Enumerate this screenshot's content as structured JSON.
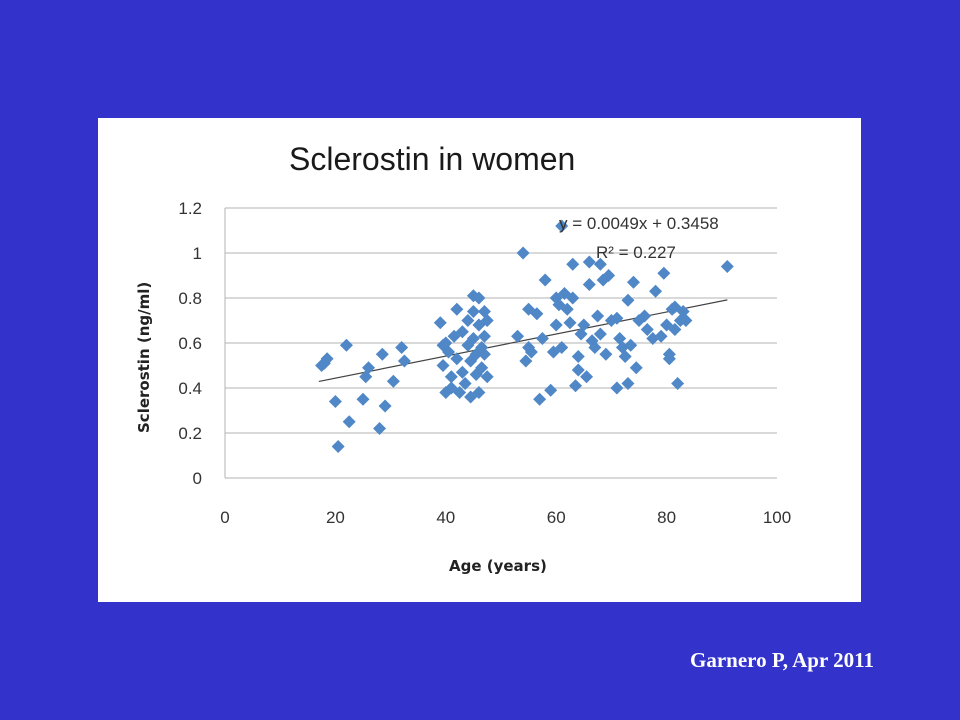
{
  "slide": {
    "citation": "Garnero P, Apr 2011",
    "background_color": "#3333cc"
  },
  "chart_data": {
    "type": "scatter",
    "title": "Sclerostin in women",
    "xlabel": "Age (years)",
    "ylabel": "Sclerostin (ng/ml)",
    "xlim": [
      0,
      100
    ],
    "ylim": [
      0,
      1.2
    ],
    "x_ticks": [
      "0",
      "20",
      "40",
      "60",
      "80",
      "100"
    ],
    "y_ticks": [
      "0",
      "0.2",
      "0.4",
      "0.6",
      "0.8",
      "1",
      "1.2"
    ],
    "grid": "horizontal",
    "marker": "diamond",
    "marker_color": "#4f87c7",
    "trendline": {
      "type": "linear",
      "slope": 0.0049,
      "intercept": 0.3458,
      "x_range": [
        17,
        91
      ],
      "equation_label": "y = 0.0049x + 0.3458",
      "r2_label": "R² = 0.227"
    },
    "points": [
      [
        17.5,
        0.5
      ],
      [
        18.5,
        0.53
      ],
      [
        18,
        0.51
      ],
      [
        20,
        0.34
      ],
      [
        20.5,
        0.14
      ],
      [
        22,
        0.59
      ],
      [
        22.5,
        0.25
      ],
      [
        25,
        0.35
      ],
      [
        25.5,
        0.45
      ],
      [
        26,
        0.49
      ],
      [
        28,
        0.22
      ],
      [
        28.5,
        0.55
      ],
      [
        29,
        0.32
      ],
      [
        30.5,
        0.43
      ],
      [
        32,
        0.58
      ],
      [
        32.5,
        0.52
      ],
      [
        39,
        0.69
      ],
      [
        39.5,
        0.59
      ],
      [
        39.5,
        0.5
      ],
      [
        40,
        0.38
      ],
      [
        40,
        0.6
      ],
      [
        40.5,
        0.56
      ],
      [
        41,
        0.45
      ],
      [
        41,
        0.4
      ],
      [
        41.5,
        0.63
      ],
      [
        42,
        0.75
      ],
      [
        42,
        0.53
      ],
      [
        42.5,
        0.38
      ],
      [
        43,
        0.65
      ],
      [
        43,
        0.47
      ],
      [
        43.5,
        0.42
      ],
      [
        44,
        0.7
      ],
      [
        44,
        0.59
      ],
      [
        44.5,
        0.52
      ],
      [
        44.5,
        0.36
      ],
      [
        45,
        0.81
      ],
      [
        45,
        0.74
      ],
      [
        45,
        0.62
      ],
      [
        45.5,
        0.55
      ],
      [
        45.5,
        0.46
      ],
      [
        46,
        0.8
      ],
      [
        46,
        0.68
      ],
      [
        46,
        0.38
      ],
      [
        46.5,
        0.58
      ],
      [
        46.5,
        0.49
      ],
      [
        47,
        0.74
      ],
      [
        47,
        0.63
      ],
      [
        47,
        0.55
      ],
      [
        47.5,
        0.45
      ],
      [
        47.5,
        0.7
      ],
      [
        53,
        0.63
      ],
      [
        54,
        1.0
      ],
      [
        54.5,
        0.52
      ],
      [
        55,
        0.75
      ],
      [
        55,
        0.58
      ],
      [
        55.5,
        0.56
      ],
      [
        56.5,
        0.73
      ],
      [
        57,
        0.35
      ],
      [
        57.5,
        0.62
      ],
      [
        58,
        0.88
      ],
      [
        59,
        0.39
      ],
      [
        59.5,
        0.56
      ],
      [
        60,
        0.68
      ],
      [
        60,
        0.8
      ],
      [
        60.5,
        0.77
      ],
      [
        61,
        1.12
      ],
      [
        61,
        0.58
      ],
      [
        61.5,
        0.82
      ],
      [
        62,
        0.75
      ],
      [
        62.5,
        0.69
      ],
      [
        63,
        0.95
      ],
      [
        63,
        0.8
      ],
      [
        63.5,
        0.41
      ],
      [
        64,
        0.54
      ],
      [
        64,
        0.48
      ],
      [
        64.5,
        0.64
      ],
      [
        65,
        0.68
      ],
      [
        65.5,
        0.45
      ],
      [
        66,
        0.96
      ],
      [
        66,
        0.86
      ],
      [
        66.5,
        0.61
      ],
      [
        67,
        0.58
      ],
      [
        67.5,
        0.72
      ],
      [
        68,
        0.95
      ],
      [
        68,
        0.64
      ],
      [
        68.5,
        0.88
      ],
      [
        69,
        0.55
      ],
      [
        69.5,
        0.9
      ],
      [
        70,
        0.7
      ],
      [
        71,
        0.4
      ],
      [
        71,
        0.71
      ],
      [
        71.5,
        0.62
      ],
      [
        72,
        0.58
      ],
      [
        72.5,
        0.54
      ],
      [
        73,
        0.79
      ],
      [
        73,
        0.42
      ],
      [
        73.5,
        0.59
      ],
      [
        74,
        0.87
      ],
      [
        74.5,
        0.49
      ],
      [
        75,
        0.7
      ],
      [
        76,
        0.72
      ],
      [
        76.5,
        0.66
      ],
      [
        77.5,
        0.62
      ],
      [
        78,
        0.83
      ],
      [
        79,
        0.63
      ],
      [
        79.5,
        0.91
      ],
      [
        80,
        0.68
      ],
      [
        80.5,
        0.55
      ],
      [
        80.5,
        0.53
      ],
      [
        81,
        0.75
      ],
      [
        81.5,
        0.76
      ],
      [
        81.5,
        0.66
      ],
      [
        82,
        0.42
      ],
      [
        82.5,
        0.7
      ],
      [
        83,
        0.74
      ],
      [
        83.5,
        0.7
      ],
      [
        91,
        0.94
      ]
    ]
  }
}
